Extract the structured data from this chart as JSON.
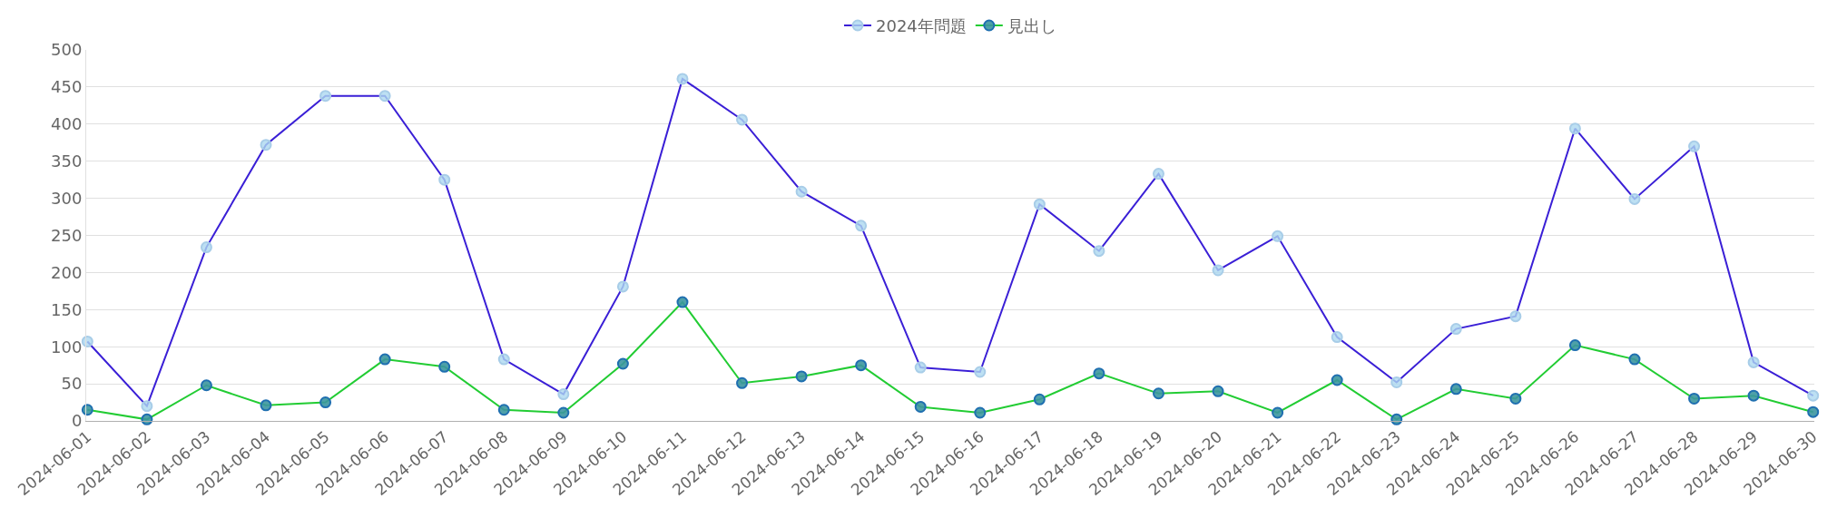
{
  "chart_data": {
    "type": "line",
    "categories": [
      "2024-06-01",
      "2024-06-02",
      "2024-06-03",
      "2024-06-04",
      "2024-06-05",
      "2024-06-06",
      "2024-06-07",
      "2024-06-08",
      "2024-06-09",
      "2024-06-10",
      "2024-06-11",
      "2024-06-12",
      "2024-06-13",
      "2024-06-14",
      "2024-06-15",
      "2024-06-16",
      "2024-06-17",
      "2024-06-18",
      "2024-06-19",
      "2024-06-20",
      "2024-06-21",
      "2024-06-22",
      "2024-06-23",
      "2024-06-24",
      "2024-06-25",
      "2024-06-26",
      "2024-06-27",
      "2024-06-28",
      "2024-06-29",
      "2024-06-30"
    ],
    "series": [
      {
        "name": "2024年問題",
        "color": "#3a1fd6",
        "values": [
          107,
          20,
          234,
          372,
          438,
          438,
          325,
          83,
          36,
          181,
          461,
          406,
          309,
          263,
          72,
          66,
          292,
          229,
          333,
          203,
          249,
          113,
          52,
          124,
          141,
          394,
          299,
          370,
          79,
          34
        ]
      },
      {
        "name": "見出し",
        "color": "#22cc33",
        "values": [
          15,
          2,
          48,
          21,
          25,
          83,
          73,
          15,
          11,
          77,
          160,
          51,
          60,
          75,
          19,
          11,
          29,
          64,
          37,
          40,
          11,
          55,
          2,
          43,
          30,
          102,
          83,
          30,
          34,
          12
        ]
      }
    ],
    "ylim": [
      0,
      500
    ],
    "yticks": [
      0,
      50,
      100,
      150,
      200,
      250,
      300,
      350,
      400,
      450,
      500
    ],
    "grid": "y",
    "legend": "top",
    "marker": "circle",
    "line_style": "solid"
  }
}
